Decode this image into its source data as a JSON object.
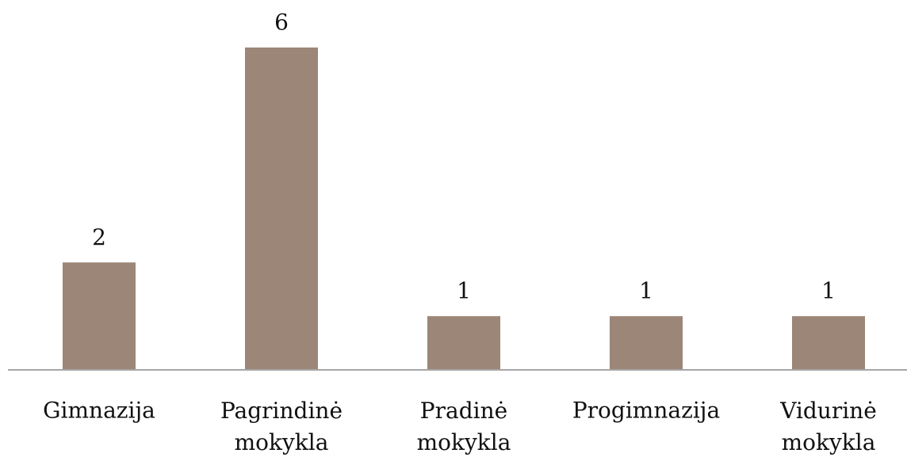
{
  "chart_data": {
    "type": "bar",
    "categories": [
      "Gimnazija",
      "Pagrindinė mokykla",
      "Pradinė mokykla",
      "Progimnazija",
      "Vidurinė mokykla"
    ],
    "values": [
      2,
      6,
      1,
      1,
      1
    ],
    "color": "#9b8677"
  }
}
